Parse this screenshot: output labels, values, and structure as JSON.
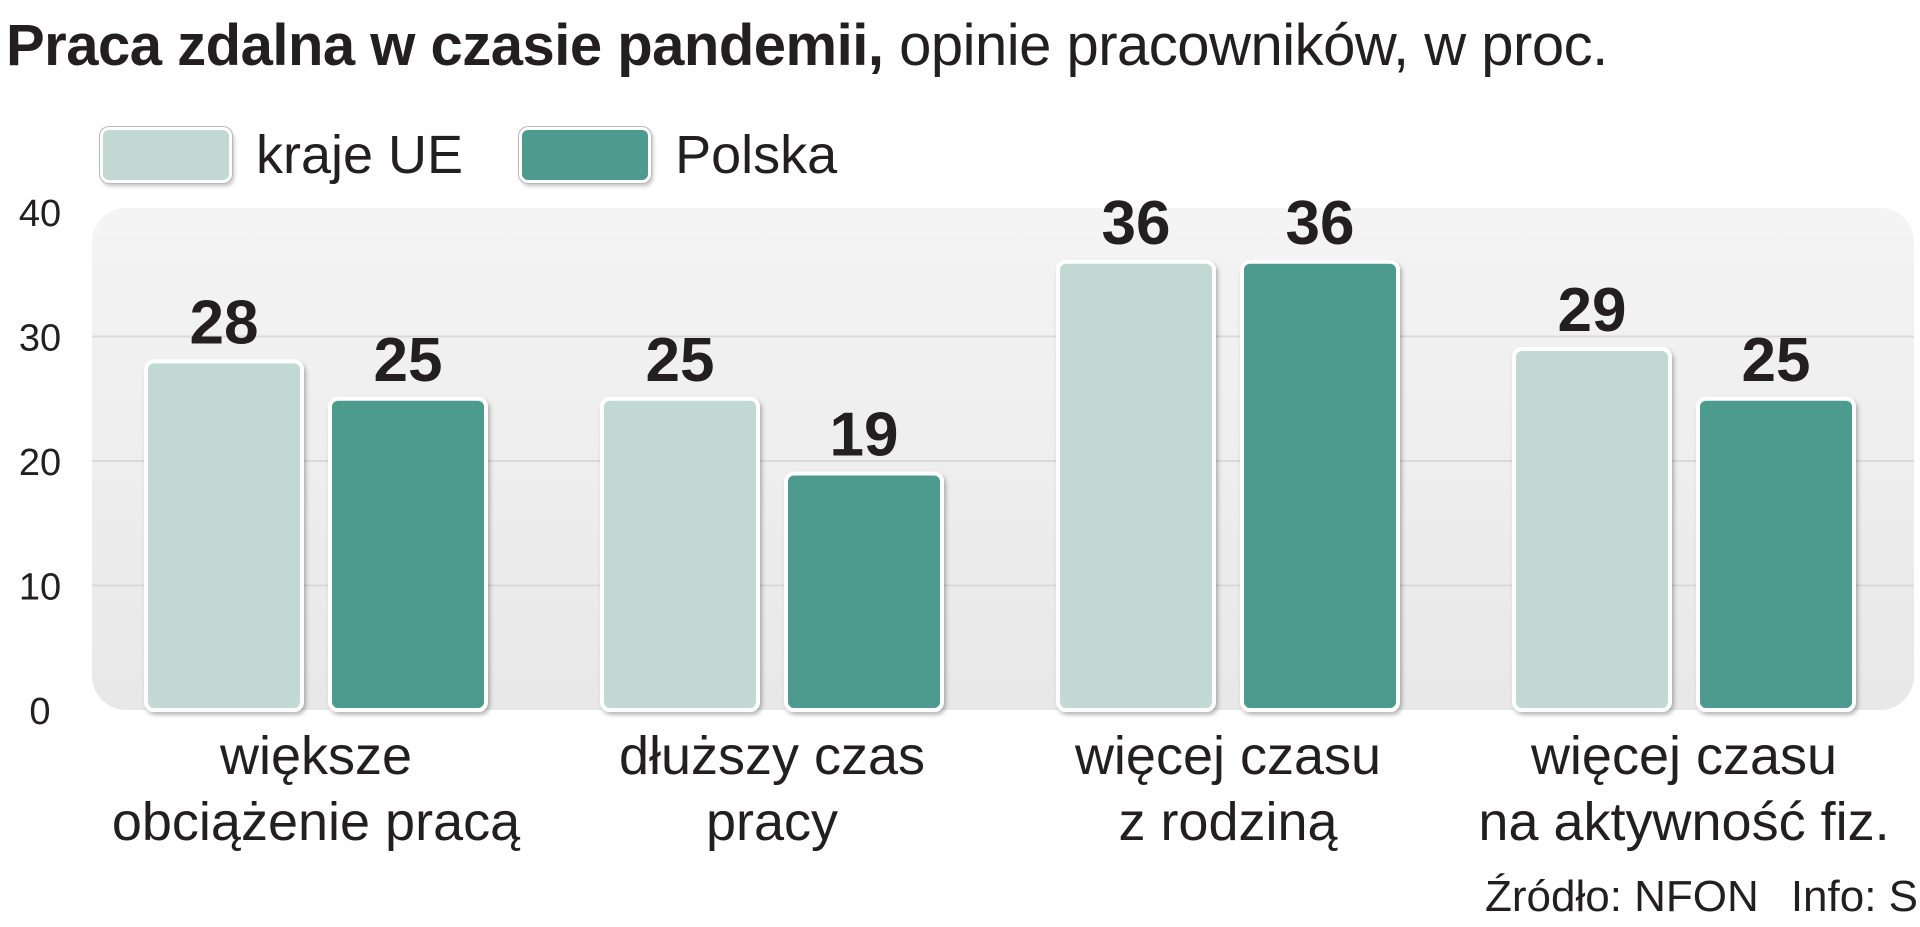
{
  "title": {
    "main": "Praca zdalna w czasie pandemii,",
    "sub": " opinie pracowników, w proc."
  },
  "colors": {
    "eu": "#c1d9d2",
    "pl": "#4e9a8e",
    "panel": "#eeeeee",
    "grid": "#dadada",
    "text": "#231f20"
  },
  "chart_data": {
    "type": "bar",
    "categories": [
      [
        "większe",
        "obciążenie pracą"
      ],
      [
        "dłuższy czas",
        "pracy"
      ],
      [
        "więcej czasu",
        "z rodziną"
      ],
      [
        "więcej czasu",
        "na aktywność fiz."
      ]
    ],
    "series": [
      {
        "name": "kraje UE",
        "values": [
          28,
          25,
          36,
          29
        ]
      },
      {
        "name": "Polska",
        "values": [
          25,
          19,
          36,
          25
        ]
      }
    ],
    "ylim": [
      0,
      40
    ],
    "yticks": [
      0,
      10,
      20,
      30,
      40
    ],
    "grid": true,
    "legend": "top-left",
    "data_labels": true
  },
  "source": {
    "source_text": "Źródło: NFON",
    "info_text": "Info: S"
  }
}
